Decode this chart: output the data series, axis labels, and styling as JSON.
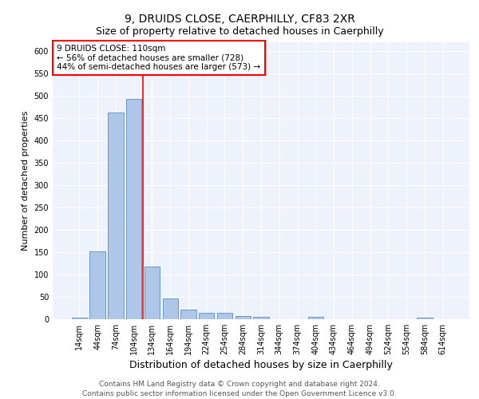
{
  "title1": "9, DRUIDS CLOSE, CAERPHILLY, CF83 2XR",
  "title2": "Size of property relative to detached houses in Caerphilly",
  "xlabel": "Distribution of detached houses by size in Caerphilly",
  "ylabel": "Number of detached properties",
  "categories": [
    "14sqm",
    "44sqm",
    "74sqm",
    "104sqm",
    "134sqm",
    "164sqm",
    "194sqm",
    "224sqm",
    "254sqm",
    "284sqm",
    "314sqm",
    "344sqm",
    "374sqm",
    "404sqm",
    "434sqm",
    "464sqm",
    "494sqm",
    "524sqm",
    "554sqm",
    "584sqm",
    "614sqm"
  ],
  "values": [
    3,
    152,
    462,
    492,
    117,
    47,
    22,
    14,
    14,
    8,
    5,
    0,
    0,
    5,
    0,
    0,
    0,
    0,
    0,
    3,
    0
  ],
  "bar_color": "#aec6e8",
  "bar_edge_color": "#5a8fc2",
  "red_line_x": 3.5,
  "annotation_text": "9 DRUIDS CLOSE: 110sqm\n← 56% of detached houses are smaller (728)\n44% of semi-detached houses are larger (573) →",
  "annotation_box_color": "white",
  "annotation_box_edge_color": "red",
  "ylim": [
    0,
    620
  ],
  "yticks": [
    0,
    50,
    100,
    150,
    200,
    250,
    300,
    350,
    400,
    450,
    500,
    550,
    600
  ],
  "footer_text": "Contains HM Land Registry data © Crown copyright and database right 2024.\nContains public sector information licensed under the Open Government Licence v3.0.",
  "background_color": "#eef2fb",
  "grid_color": "white",
  "title1_fontsize": 10,
  "title2_fontsize": 9,
  "xlabel_fontsize": 9,
  "ylabel_fontsize": 8,
  "tick_fontsize": 7,
  "annotation_fontsize": 7.5,
  "footer_fontsize": 6.5
}
